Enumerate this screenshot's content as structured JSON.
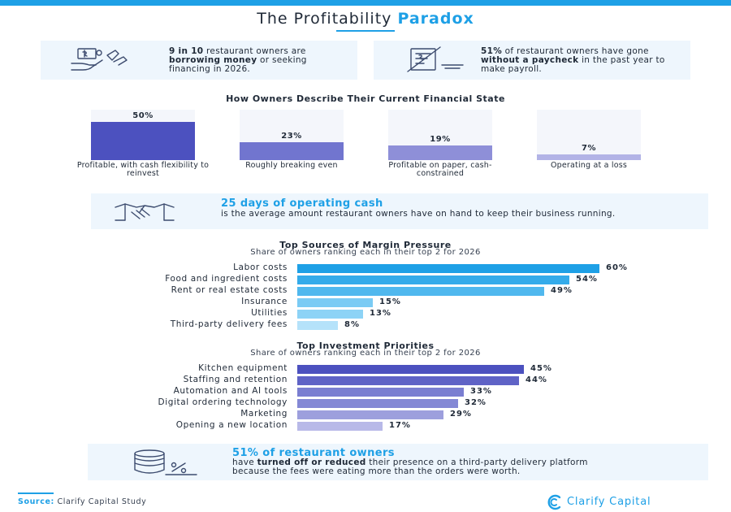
{
  "title": {
    "main": "The Profitability",
    "accent": "Paradox"
  },
  "stats": [
    {
      "icon": "money-hand-icon",
      "bold1": "9 in 10",
      "text1": " restaurant owners are ",
      "bold2": "borrowing money",
      "text2": " or seeking financing in 2026."
    },
    {
      "icon": "paycheck-crossed-icon",
      "bold1": "51%",
      "text1": " of restaurant owners have gone ",
      "bold2": "without a paycheck",
      "text2": " in the past year to make payroll."
    }
  ],
  "chart_data": [
    {
      "type": "bar",
      "orientation": "vertical",
      "title": "How Owners Describe Their Current Financial State",
      "categories": [
        "Profitable, with cash flexibility to reinvest",
        "Roughly breaking even",
        "Profitable on paper, cash-constrained",
        "Operating at a loss"
      ],
      "values": [
        50,
        23,
        19,
        7
      ],
      "value_labels": [
        "50%",
        "23%",
        "19%",
        "7%"
      ],
      "ylim": [
        0,
        50
      ],
      "colors": [
        "#4c51bf",
        "#7175cf",
        "#8e8fd8",
        "#b2b3e6"
      ]
    },
    {
      "type": "bar",
      "orientation": "horizontal",
      "title": "Top Sources of Margin Pressure",
      "subtitle": "Share of owners ranking each in their top 2 for 2026",
      "categories": [
        "Labor costs",
        "Food and ingredient costs",
        "Rent or real estate costs",
        "Insurance",
        "Utilities",
        "Third-party delivery fees"
      ],
      "values": [
        60,
        54,
        49,
        15,
        13,
        8
      ],
      "value_labels": [
        "60%",
        "54%",
        "49%",
        "15%",
        "13%",
        "8%"
      ],
      "xlim": [
        0,
        60
      ],
      "colors": [
        "#1ea0e6",
        "#34abea",
        "#50b8ee",
        "#7acbf4",
        "#8dd3f6",
        "#b5e2fa"
      ]
    },
    {
      "type": "bar",
      "orientation": "horizontal",
      "title": "Top Investment Priorities",
      "subtitle": "Share of owners ranking each in their top 2 for 2026",
      "categories": [
        "Kitchen equipment",
        "Staffing and retention",
        "Automation and AI tools",
        "Digital ordering technology",
        "Marketing",
        "Opening a new location"
      ],
      "values": [
        45,
        44,
        33,
        32,
        29,
        17
      ],
      "value_labels": [
        "45%",
        "44%",
        "33%",
        "32%",
        "29%",
        "17%"
      ],
      "xlim": [
        0,
        60
      ],
      "colors": [
        "#4c51bf",
        "#5f63c6",
        "#7a7ed1",
        "#8488d5",
        "#9d9fdd",
        "#b8b9e8"
      ]
    }
  ],
  "band1": {
    "icon": "handshake-icon",
    "headline": "25 days of operating cash",
    "body": "is the average amount restaurant owners have on hand to keep their business running."
  },
  "band2": {
    "icon": "coins-percent-icon",
    "headline": "51% of restaurant owners",
    "text1": "have ",
    "bold": "turned off or reduced",
    "text2": " their presence on a third-party delivery platform because the fees were eating more than the orders were worth."
  },
  "footer": {
    "source_label": "Source:",
    "source_text": "Clarify Capital Study",
    "brand": "Clarify Capital",
    "brand_icon": "clarify-logo-icon"
  }
}
